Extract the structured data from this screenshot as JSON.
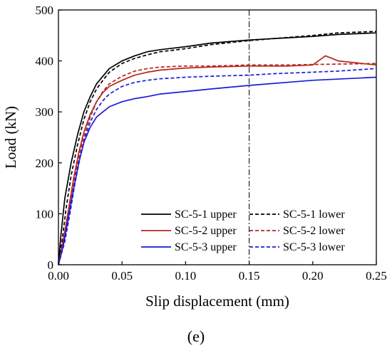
{
  "caption": "(e)",
  "chart_data": {
    "type": "line",
    "title": "",
    "xlabel": "Slip displacement (mm)",
    "ylabel": "Load (kN)",
    "xlim": [
      0.0,
      0.25
    ],
    "ylim": [
      0,
      500
    ],
    "xticks": [
      0.0,
      0.05,
      0.1,
      0.15,
      0.2,
      0.25
    ],
    "xtick_labels": [
      "0.00",
      "0.05",
      "0.10",
      "0.15",
      "0.20",
      "0.25"
    ],
    "yticks": [
      0,
      100,
      200,
      300,
      400,
      500
    ],
    "ytick_labels": [
      "0",
      "100",
      "200",
      "300",
      "400",
      "500"
    ],
    "reference_line": {
      "x": 0.15,
      "style": "dash-dot"
    },
    "legend_position": "bottom-right",
    "colors": {
      "black": "#000000",
      "red": "#b5261e",
      "blue": "#1a1adb"
    },
    "series": [
      {
        "name": "SC-5-1 upper",
        "color": "#000000",
        "dash": "solid",
        "x": [
          0,
          0.002,
          0.005,
          0.01,
          0.015,
          0.02,
          0.025,
          0.03,
          0.035,
          0.04,
          0.05,
          0.06,
          0.07,
          0.08,
          0.09,
          0.1,
          0.12,
          0.15,
          0.17,
          0.2,
          0.22,
          0.25
        ],
        "y": [
          0,
          60,
          130,
          200,
          255,
          300,
          330,
          355,
          370,
          385,
          400,
          410,
          418,
          422,
          425,
          428,
          435,
          441,
          444,
          448,
          452,
          455
        ]
      },
      {
        "name": "SC-5-1 lower",
        "color": "#000000",
        "dash": "dashed",
        "x": [
          0,
          0.003,
          0.006,
          0.01,
          0.015,
          0.02,
          0.025,
          0.03,
          0.035,
          0.04,
          0.05,
          0.06,
          0.07,
          0.08,
          0.09,
          0.1,
          0.12,
          0.15,
          0.17,
          0.2,
          0.22,
          0.25
        ],
        "y": [
          0,
          50,
          110,
          175,
          235,
          285,
          320,
          345,
          362,
          378,
          395,
          405,
          412,
          418,
          421,
          424,
          432,
          440,
          444,
          450,
          455,
          458
        ]
      },
      {
        "name": "SC-5-2 upper",
        "color": "#b5261e",
        "dash": "solid",
        "x": [
          0,
          0.004,
          0.008,
          0.012,
          0.016,
          0.02,
          0.025,
          0.03,
          0.035,
          0.04,
          0.05,
          0.06,
          0.07,
          0.08,
          0.1,
          0.12,
          0.15,
          0.18,
          0.2,
          0.21,
          0.22,
          0.25
        ],
        "y": [
          0,
          50,
          110,
          170,
          220,
          260,
          295,
          320,
          338,
          350,
          362,
          372,
          378,
          382,
          386,
          388,
          390,
          390,
          392,
          410,
          400,
          392
        ]
      },
      {
        "name": "SC-5-2 lower",
        "color": "#b5261e",
        "dash": "dashed",
        "x": [
          0,
          0.004,
          0.008,
          0.012,
          0.016,
          0.02,
          0.025,
          0.03,
          0.035,
          0.04,
          0.05,
          0.06,
          0.07,
          0.08,
          0.1,
          0.12,
          0.15,
          0.18,
          0.2,
          0.25
        ],
        "y": [
          0,
          45,
          100,
          160,
          210,
          250,
          290,
          320,
          340,
          355,
          370,
          380,
          385,
          388,
          390,
          390,
          392,
          392,
          393,
          395
        ]
      },
      {
        "name": "SC-5-3 upper",
        "color": "#1a1adb",
        "dash": "solid",
        "x": [
          0,
          0.004,
          0.008,
          0.012,
          0.016,
          0.02,
          0.025,
          0.03,
          0.035,
          0.04,
          0.05,
          0.06,
          0.07,
          0.08,
          0.1,
          0.12,
          0.15,
          0.18,
          0.2,
          0.25
        ],
        "y": [
          0,
          40,
          95,
          150,
          200,
          240,
          270,
          290,
          300,
          310,
          320,
          326,
          330,
          335,
          340,
          345,
          352,
          358,
          362,
          368
        ]
      },
      {
        "name": "SC-5-3 lower",
        "color": "#1a1adb",
        "dash": "dashed",
        "x": [
          0,
          0.005,
          0.009,
          0.013,
          0.017,
          0.021,
          0.025,
          0.03,
          0.035,
          0.04,
          0.05,
          0.06,
          0.07,
          0.08,
          0.1,
          0.12,
          0.15,
          0.17,
          0.2,
          0.22,
          0.25
        ],
        "y": [
          0,
          45,
          100,
          160,
          210,
          250,
          280,
          305,
          322,
          335,
          350,
          358,
          362,
          365,
          368,
          370,
          372,
          375,
          378,
          380,
          385
        ]
      }
    ]
  }
}
